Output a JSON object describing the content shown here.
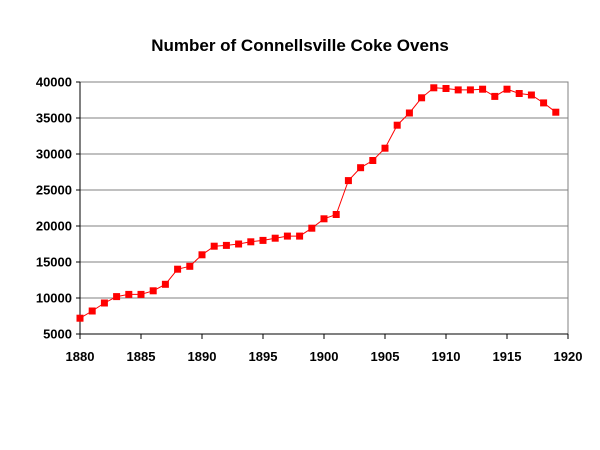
{
  "chart_data": {
    "type": "line",
    "title": "Number of Connellsville Coke Ovens",
    "xlabel": "",
    "ylabel": "",
    "xlim": [
      1880,
      1920
    ],
    "ylim": [
      5000,
      40000
    ],
    "x_ticks": [
      1880,
      1885,
      1890,
      1895,
      1900,
      1905,
      1910,
      1915,
      1920
    ],
    "y_ticks": [
      5000,
      10000,
      15000,
      20000,
      25000,
      30000,
      35000,
      40000
    ],
    "grid": true,
    "legend": "none",
    "series": [
      {
        "color": "#ff0000",
        "marker": "square",
        "x": [
          1880,
          1881,
          1882,
          1883,
          1884,
          1885,
          1886,
          1887,
          1888,
          1889,
          1890,
          1891,
          1892,
          1893,
          1894,
          1895,
          1896,
          1897,
          1898,
          1899,
          1900,
          1901,
          1902,
          1903,
          1904,
          1905,
          1906,
          1907,
          1908,
          1909,
          1910,
          1911,
          1912,
          1913,
          1914,
          1915,
          1916,
          1917,
          1918,
          1919
        ],
        "values": [
          7200,
          8200,
          9300,
          10200,
          10500,
          10500,
          11000,
          11900,
          14000,
          14400,
          16000,
          17200,
          17300,
          17500,
          17800,
          18000,
          18300,
          18600,
          18600,
          19700,
          21000,
          21600,
          26300,
          28100,
          29100,
          30800,
          34000,
          35700,
          37800,
          39200,
          39100,
          38900,
          38900,
          39000,
          38000,
          39000,
          38400,
          38200,
          37100,
          35800
        ]
      }
    ]
  }
}
